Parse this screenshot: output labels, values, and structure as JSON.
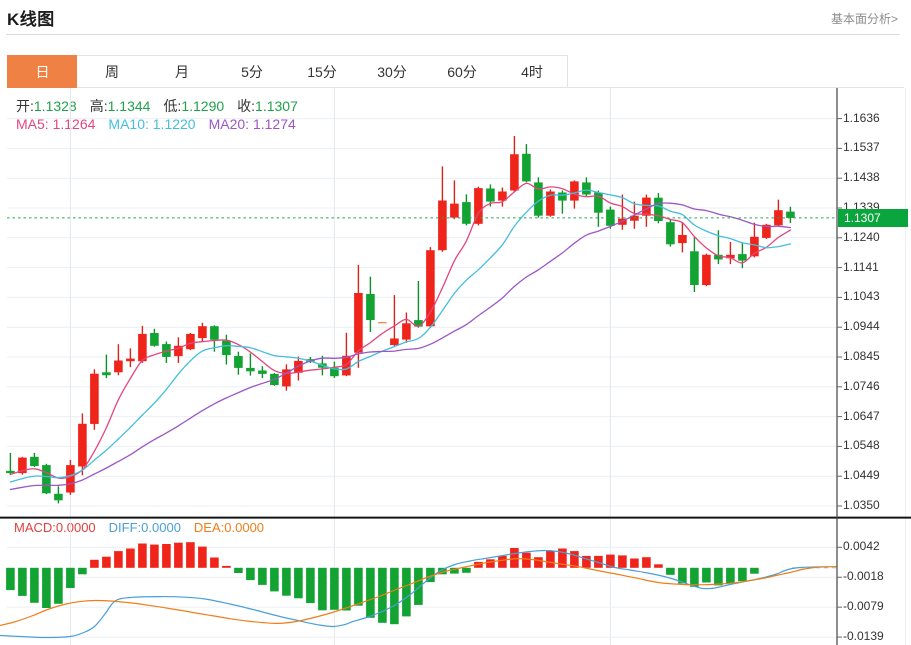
{
  "header": {
    "title": "K线图",
    "link": "基本面分析>"
  },
  "tabs": [
    {
      "label": "日",
      "active": true
    },
    {
      "label": "周",
      "active": false
    },
    {
      "label": "月",
      "active": false
    },
    {
      "label": "5分",
      "active": false
    },
    {
      "label": "15分",
      "active": false
    },
    {
      "label": "30分",
      "active": false
    },
    {
      "label": "60分",
      "active": false
    },
    {
      "label": "4时",
      "active": false
    }
  ],
  "legend": {
    "ohlc": [
      {
        "label": "开:",
        "value": "1.1328"
      },
      {
        "label": "高:",
        "value": "1.1344"
      },
      {
        "label": "低:",
        "value": "1.1290"
      },
      {
        "label": "收:",
        "value": "1.1307"
      }
    ],
    "ma": [
      {
        "label": "MA5: ",
        "value": "1.1264",
        "color": "#e5457e"
      },
      {
        "label": "MA10: ",
        "value": "1.1220",
        "color": "#45bede"
      },
      {
        "label": "MA20: ",
        "value": "1.1274",
        "color": "#9c57c6"
      }
    ]
  },
  "macd_legend": [
    {
      "label": "MACD:",
      "value": "0.0000",
      "color": "#e23e3e"
    },
    {
      "label": "DIFF:",
      "value": "0.0000",
      "color": "#4a9fd8"
    },
    {
      "label": "DEA:",
      "value": "0.0000",
      "color": "#ef7e1a"
    }
  ],
  "chart_data": {
    "type": "candlestick",
    "title": "K线图",
    "price_axis": {
      "labels": [
        "1.1636",
        "1.1537",
        "1.1438",
        "1.1339",
        "1.1240",
        "1.1141",
        "1.1043",
        "1.0944",
        "1.0845",
        "1.0746",
        "1.0647",
        "1.0548",
        "1.0449",
        "1.0350"
      ],
      "min": 1.035,
      "max": 1.1636,
      "step": 0.0099,
      "current_price": 1.1307,
      "current_price_label": "1.1307"
    },
    "candles": [
      {
        "o": 1.04669,
        "h": 1.05264,
        "l": 1.0454,
        "c": 1.04593
      },
      {
        "o": 1.04593,
        "h": 1.05134,
        "l": 1.0454,
        "c": 1.05108
      },
      {
        "o": 1.05134,
        "h": 1.05264,
        "l": 1.04796,
        "c": 1.04826
      },
      {
        "o": 1.04859,
        "h": 1.04902,
        "l": 1.03895,
        "c": 1.03922
      },
      {
        "o": 1.03905,
        "h": 1.04154,
        "l": 1.03586,
        "c": 1.03689
      },
      {
        "o": 1.03948,
        "h": 1.05032,
        "l": 1.03869,
        "c": 1.04859
      },
      {
        "o": 1.04812,
        "h": 1.06573,
        "l": 1.0452,
        "c": 1.06231
      },
      {
        "o": 1.06227,
        "h": 1.08041,
        "l": 1.06031,
        "c": 1.07895
      },
      {
        "o": 1.07942,
        "h": 1.0853,
        "l": 1.07746,
        "c": 1.07845
      },
      {
        "o": 1.07942,
        "h": 1.08875,
        "l": 1.07845,
        "c": 1.08334
      },
      {
        "o": 1.0831,
        "h": 1.08736,
        "l": 1.08111,
        "c": 1.08397
      },
      {
        "o": 1.0831,
        "h": 1.09483,
        "l": 1.08254,
        "c": 1.09217
      },
      {
        "o": 1.09247,
        "h": 1.09387,
        "l": 1.08792,
        "c": 1.08822
      },
      {
        "o": 1.08879,
        "h": 1.08962,
        "l": 1.08254,
        "c": 1.08453
      },
      {
        "o": 1.0848,
        "h": 1.09104,
        "l": 1.08254,
        "c": 1.08822
      },
      {
        "o": 1.08709,
        "h": 1.09247,
        "l": 1.08676,
        "c": 1.09217
      },
      {
        "o": 1.09078,
        "h": 1.09586,
        "l": 1.08965,
        "c": 1.09473
      },
      {
        "o": 1.09473,
        "h": 1.09503,
        "l": 1.08626,
        "c": 1.09021
      },
      {
        "o": 1.08992,
        "h": 1.09191,
        "l": 1.08201,
        "c": 1.08513
      },
      {
        "o": 1.08483,
        "h": 1.08626,
        "l": 1.07862,
        "c": 1.08088
      },
      {
        "o": 1.08088,
        "h": 1.0857,
        "l": 1.07832,
        "c": 1.07975
      },
      {
        "o": 1.08002,
        "h": 1.08144,
        "l": 1.07749,
        "c": 1.07889
      },
      {
        "o": 1.07889,
        "h": 1.07918,
        "l": 1.07493,
        "c": 1.0752
      },
      {
        "o": 1.07473,
        "h": 1.08207,
        "l": 1.0733,
        "c": 1.08038
      },
      {
        "o": 1.07925,
        "h": 1.08463,
        "l": 1.07669,
        "c": 1.0832
      },
      {
        "o": 1.08377,
        "h": 1.0845,
        "l": 1.08251,
        "c": 1.08294
      },
      {
        "o": 1.08237,
        "h": 1.0849,
        "l": 1.07839,
        "c": 1.08095
      },
      {
        "o": 1.08095,
        "h": 1.08294,
        "l": 1.07756,
        "c": 1.07812
      },
      {
        "o": 1.07839,
        "h": 1.09254,
        "l": 1.07812,
        "c": 1.0849
      },
      {
        "o": 1.08596,
        "h": 1.11513,
        "l": 1.08091,
        "c": 1.10576
      },
      {
        "o": 1.10543,
        "h": 1.11118,
        "l": 1.09281,
        "c": 1.09676
      },
      {
        "o": 1.09613,
        "h": 1.09643,
        "l": 1.09583,
        "c": 1.09613
      },
      {
        "o": 1.08849,
        "h": 1.10506,
        "l": 1.08812,
        "c": 1.09065
      },
      {
        "o": 1.09028,
        "h": 1.09928,
        "l": 1.08922,
        "c": 1.0957
      },
      {
        "o": 1.09676,
        "h": 1.10975,
        "l": 1.09423,
        "c": 1.0946
      },
      {
        "o": 1.0947,
        "h": 1.12101,
        "l": 1.09413,
        "c": 1.11998
      },
      {
        "o": 1.11998,
        "h": 1.14782,
        "l": 1.11945,
        "c": 1.13649
      },
      {
        "o": 1.13081,
        "h": 1.14317,
        "l": 1.13028,
        "c": 1.13546
      },
      {
        "o": 1.13596,
        "h": 1.13855,
        "l": 1.12822,
        "c": 1.12875
      },
      {
        "o": 1.12875,
        "h": 1.14111,
        "l": 1.12822,
        "c": 1.14061
      },
      {
        "o": 1.14048,
        "h": 1.14184,
        "l": 1.13447,
        "c": 1.13613
      },
      {
        "o": 1.13646,
        "h": 1.14081,
        "l": 1.13447,
        "c": 1.13948
      },
      {
        "o": 1.13981,
        "h": 1.15792,
        "l": 1.13948,
        "c": 1.15187
      },
      {
        "o": 1.15201,
        "h": 1.15523,
        "l": 1.1425,
        "c": 1.14284
      },
      {
        "o": 1.1425,
        "h": 1.14417,
        "l": 1.13078,
        "c": 1.13144
      },
      {
        "o": 1.13144,
        "h": 1.14015,
        "l": 1.13111,
        "c": 1.13948
      },
      {
        "o": 1.13915,
        "h": 1.13981,
        "l": 1.13211,
        "c": 1.13646
      },
      {
        "o": 1.13646,
        "h": 1.14317,
        "l": 1.1338,
        "c": 1.14284
      },
      {
        "o": 1.1425,
        "h": 1.14417,
        "l": 1.13782,
        "c": 1.13848
      },
      {
        "o": 1.13915,
        "h": 1.13981,
        "l": 1.12775,
        "c": 1.13244
      },
      {
        "o": 1.13347,
        "h": 1.13447,
        "l": 1.12709,
        "c": 1.12809
      },
      {
        "o": 1.12842,
        "h": 1.13848,
        "l": 1.12676,
        "c": 1.13045
      },
      {
        "o": 1.12978,
        "h": 1.13613,
        "l": 1.12709,
        "c": 1.13144
      },
      {
        "o": 1.13144,
        "h": 1.13848,
        "l": 1.12775,
        "c": 1.13746
      },
      {
        "o": 1.13742,
        "h": 1.13895,
        "l": 1.12892,
        "c": 1.12968
      },
      {
        "o": 1.12928,
        "h": 1.13045,
        "l": 1.12118,
        "c": 1.12194
      },
      {
        "o": 1.12234,
        "h": 1.12928,
        "l": 1.11925,
        "c": 1.12503
      },
      {
        "o": 1.11962,
        "h": 1.12427,
        "l": 1.10609,
        "c": 1.10842
      },
      {
        "o": 1.10842,
        "h": 1.11885,
        "l": 1.10802,
        "c": 1.11845
      },
      {
        "o": 1.11845,
        "h": 1.12659,
        "l": 1.11536,
        "c": 1.11692
      },
      {
        "o": 1.11729,
        "h": 1.1227,
        "l": 1.11536,
        "c": 1.11845
      },
      {
        "o": 1.11868,
        "h": 1.12227,
        "l": 1.114,
        "c": 1.11653
      },
      {
        "o": 1.11795,
        "h": 1.12912,
        "l": 1.11759,
        "c": 1.12443
      },
      {
        "o": 1.12407,
        "h": 1.12875,
        "l": 1.12373,
        "c": 1.12842
      },
      {
        "o": 1.12825,
        "h": 1.13676,
        "l": 1.12792,
        "c": 1.13327
      },
      {
        "o": 1.1328,
        "h": 1.1344,
        "l": 1.129,
        "c": 1.1307
      }
    ],
    "up_color": "#ef241a",
    "down_color": "#12a332",
    "doji_color": "#ee9054",
    "ma_series": [
      {
        "name": "MA5",
        "period": 5,
        "color": "#e5457e",
        "last": 1.1264
      },
      {
        "name": "MA10",
        "period": 10,
        "color": "#45bede",
        "last": 1.122
      },
      {
        "name": "MA20",
        "period": 20,
        "color": "#9c57c6",
        "last": 1.1274
      }
    ],
    "ma_pre_history": [
      1.03633,
      1.03669,
      1.03706,
      1.03743,
      1.03779,
      1.03819,
      1.03855,
      1.03892,
      1.03929,
      1.03965,
      1.03965,
      1.04005,
      1.04048,
      1.04091,
      1.04131,
      1.0447,
      1.04513,
      1.04556,
      1.046
    ],
    "grid_vline_indices": [
      5,
      27,
      50
    ],
    "macd": {
      "axis_labels": [
        "0.0042",
        "-0.0018",
        "-0.0079",
        "-0.0139"
      ],
      "axis_values": [
        0.0042,
        -0.0018,
        -0.0079,
        -0.0139
      ],
      "bars": [
        -0.004573,
        -0.005763,
        -0.007178,
        -0.008244,
        -0.007383,
        -0.004143,
        -0.001333,
        0.001641,
        0.002276,
        0.003425,
        0.003958,
        0.004984,
        0.004758,
        0.004881,
        0.005148,
        0.00525,
        0.004348,
        0.002112,
        0.00039,
        -0.001066,
        -0.002523,
        -0.003507,
        -0.00484,
        -0.005722,
        -0.006255,
        -0.00724,
        -0.008716,
        -0.008614,
        -0.008757,
        -0.007773,
        -0.010254,
        -0.01128,
        -0.011567,
        -0.009967,
        -0.007609,
        -0.002933,
        -0.001333,
        -0.001189,
        -0.001025,
        0.00121,
        0.001743,
        0.002441,
        0.004061,
        0.003097,
        0.002174,
        0.003527,
        0.003958,
        0.003425,
        0.002441,
        0.002441,
        0.002707,
        0.002543,
        0.001907,
        0.002174,
        0.000718,
        -0.001436,
        -0.00322,
        -0.003897,
        -0.003015,
        -0.00361,
        -0.00322,
        -0.002728,
        -0.00121,
        0,
        0,
        0
      ],
      "diff": [
        {
          "x": -0.87,
          "v": -0.013884
        },
        {
          "x": 0.8,
          "v": -0.014089
        },
        {
          "x": 2.88,
          "v": -0.014295
        },
        {
          "x": 4.97,
          "v": -0.014089
        },
        {
          "x": 6.22,
          "v": -0.013167
        },
        {
          "x": 7.05,
          "v": -0.011936
        },
        {
          "x": 7.88,
          "v": -0.009475
        },
        {
          "x": 8.72,
          "v": -0.006809
        },
        {
          "x": 9.97,
          "v": -0.006091
        },
        {
          "x": 12.47,
          "v": -0.005906
        },
        {
          "x": 14.55,
          "v": -0.00603
        },
        {
          "x": 16.22,
          "v": -0.006399
        },
        {
          "x": 18.3,
          "v": -0.007424
        },
        {
          "x": 20.38,
          "v": -0.008655
        },
        {
          "x": 22.47,
          "v": -0.009988
        },
        {
          "x": 24.13,
          "v": -0.010911
        },
        {
          "x": 25.63,
          "v": -0.01169
        },
        {
          "x": 26.88,
          "v": -0.012039
        },
        {
          "x": 27.88,
          "v": -0.011628
        },
        {
          "x": 28.47,
          "v": -0.011075
        },
        {
          "x": 29.55,
          "v": -0.010295
        },
        {
          "x": 30.88,
          "v": -0.009065
        },
        {
          "x": 32.13,
          "v": -0.007527
        },
        {
          "x": 33.38,
          "v": -0.005373
        },
        {
          "x": 34.72,
          "v": -0.002605
        },
        {
          "x": 35.8,
          "v": -0.000656
        },
        {
          "x": 37.05,
          "v": 0.000677
        },
        {
          "x": 38.3,
          "v": 0.001395
        },
        {
          "x": 39.55,
          "v": 0.001907
        },
        {
          "x": 40.8,
          "v": 0.00242
        },
        {
          "x": 42.05,
          "v": 0.002933
        },
        {
          "x": 43.3,
          "v": 0.003343
        },
        {
          "x": 44.55,
          "v": 0.003548
        },
        {
          "x": 45.63,
          "v": 0.003343
        },
        {
          "x": 46.8,
          "v": 0.002728
        },
        {
          "x": 47.88,
          "v": 0.001907
        },
        {
          "x": 49.13,
          "v": 0.000984
        },
        {
          "x": 50.38,
          "v": 6.2e-05
        },
        {
          "x": 51.63,
          "v": -0.000451
        },
        {
          "x": 52.88,
          "v": -0.000964
        },
        {
          "x": 54.13,
          "v": -0.001579
        },
        {
          "x": 55.22,
          "v": -0.002297
        },
        {
          "x": 56.3,
          "v": -0.00322
        },
        {
          "x": 57.13,
          "v": -0.003897
        },
        {
          "x": 57.8,
          "v": -0.004266
        },
        {
          "x": 58.72,
          "v": -0.004143
        },
        {
          "x": 59.97,
          "v": -0.003425
        },
        {
          "x": 61.22,
          "v": -0.00281
        },
        {
          "x": 62.47,
          "v": -0.002194
        },
        {
          "x": 63.72,
          "v": -0.001374
        },
        {
          "x": 64.8,
          "v": -0.000349
        },
        {
          "x": 65.8,
          "v": 6.2e-05
        },
        {
          "x": 67.05,
          "v": 0.000164
        },
        {
          "x": 68.13,
          "v": 0.000185
        }
      ],
      "dea": [
        {
          "x": -0.87,
          "v": -0.011833
        },
        {
          "x": 0.47,
          "v": -0.011013
        },
        {
          "x": 1.88,
          "v": -0.009783
        },
        {
          "x": 3.22,
          "v": -0.00845
        },
        {
          "x": 4.63,
          "v": -0.007424
        },
        {
          "x": 5.97,
          "v": -0.00687
        },
        {
          "x": 7.05,
          "v": -0.006706
        },
        {
          "x": 8.3,
          "v": -0.006809
        },
        {
          "x": 10.13,
          "v": -0.007219
        },
        {
          "x": 11.47,
          "v": -0.00767
        },
        {
          "x": 12.88,
          "v": -0.008203
        },
        {
          "x": 14.22,
          "v": -0.008737
        },
        {
          "x": 15.63,
          "v": -0.009352
        },
        {
          "x": 16.97,
          "v": -0.009885
        },
        {
          "x": 18.3,
          "v": -0.010439
        },
        {
          "x": 19.72,
          "v": -0.010911
        },
        {
          "x": 21.05,
          "v": -0.011239
        },
        {
          "x": 22.3,
          "v": -0.011403
        },
        {
          "x": 23.55,
          "v": -0.011116
        },
        {
          "x": 24.97,
          "v": -0.010398
        },
        {
          "x": 26.55,
          "v": -0.009372
        },
        {
          "x": 27.97,
          "v": -0.008244
        },
        {
          "x": 29.3,
          "v": -0.007116
        },
        {
          "x": 30.72,
          "v": -0.005886
        },
        {
          "x": 32.05,
          "v": -0.004553
        },
        {
          "x": 33.47,
          "v": -0.00322
        },
        {
          "x": 34.8,
          "v": -0.001887
        },
        {
          "x": 36.22,
          "v": -0.000759
        },
        {
          "x": 37.3,
          "v": -0.000144
        },
        {
          "x": 38.47,
          "v": 0.000472
        },
        {
          "x": 39.72,
          "v": 0.001087
        },
        {
          "x": 40.97,
          "v": 0.001538
        },
        {
          "x": 42.3,
          "v": 0.001887
        },
        {
          "x": 43.47,
          "v": 0.001702
        },
        {
          "x": 44.8,
          "v": 0.001189
        },
        {
          "x": 45.97,
          "v": 0.000738
        },
        {
          "x": 47.13,
          "v": 0.000328
        },
        {
          "x": 48.3,
          "v": -0.000246
        },
        {
          "x": 49.55,
          "v": -0.000861
        },
        {
          "x": 50.8,
          "v": -0.001436
        },
        {
          "x": 52.05,
          "v": -0.002051
        },
        {
          "x": 53.3,
          "v": -0.002707
        },
        {
          "x": 54.3,
          "v": -0.003117
        },
        {
          "x": 55.38,
          "v": -0.003322
        },
        {
          "x": 56.63,
          "v": -0.003486
        },
        {
          "x": 57.88,
          "v": -0.003466
        },
        {
          "x": 59.13,
          "v": -0.003322
        },
        {
          "x": 60.38,
          "v": -0.003076
        },
        {
          "x": 61.63,
          "v": -0.002605
        },
        {
          "x": 62.88,
          "v": -0.002092
        },
        {
          "x": 63.97,
          "v": -0.001477
        },
        {
          "x": 64.97,
          "v": -0.000964
        },
        {
          "x": 65.97,
          "v": -0.000349
        },
        {
          "x": 67.05,
          "v": 6.2e-05
        },
        {
          "x": 68.05,
          "v": 0.000205
        },
        {
          "x": 68.8,
          "v": 0.000246
        }
      ]
    }
  }
}
